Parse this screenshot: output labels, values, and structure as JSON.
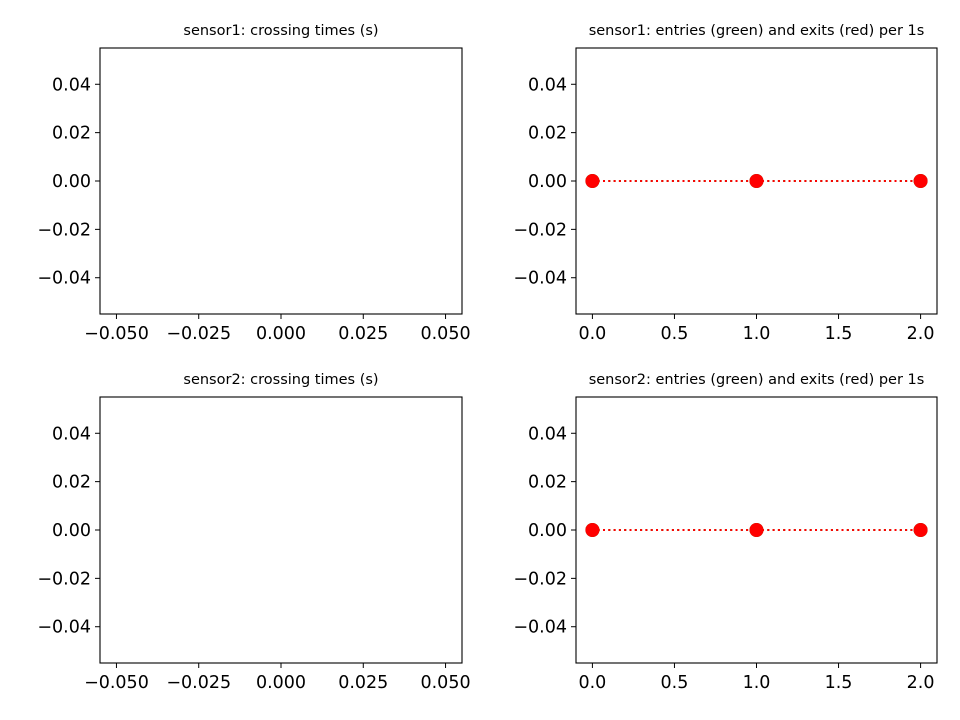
{
  "chart_data": [
    {
      "type": "scatter",
      "title": "sensor1: crossing times (s)",
      "x_ticks": [
        "−0.050",
        "−0.025",
        "0.000",
        "0.025",
        "0.050"
      ],
      "y_ticks": [
        "0.04",
        "0.02",
        "0.00",
        "−0.02",
        "−0.04"
      ],
      "xlim": [
        -0.055,
        0.055
      ],
      "ylim": [
        -0.055,
        0.055
      ],
      "x_tick_values": [
        -0.05,
        -0.025,
        0,
        0.025,
        0.05
      ],
      "y_tick_values": [
        0.04,
        0.02,
        0,
        -0.02,
        -0.04
      ],
      "series": []
    },
    {
      "type": "line",
      "title": "sensor1: entries (green) and exits (red) per 1s",
      "x_ticks": [
        "0.0",
        "0.5",
        "1.0",
        "1.5",
        "2.0"
      ],
      "y_ticks": [
        "0.04",
        "0.02",
        "0.00",
        "−0.02",
        "−0.04"
      ],
      "xlim": [
        -0.1,
        2.1
      ],
      "ylim": [
        -0.055,
        0.055
      ],
      "x_tick_values": [
        0,
        0.5,
        1,
        1.5,
        2
      ],
      "y_tick_values": [
        0.04,
        0.02,
        0,
        -0.02,
        -0.04
      ],
      "series": [
        {
          "x": [
            0,
            1,
            2
          ],
          "y": [
            0,
            0,
            0
          ],
          "color": "#008000",
          "marker": "circle",
          "linestyle": "dotted"
        },
        {
          "x": [
            0,
            1,
            2
          ],
          "y": [
            0,
            0,
            0
          ],
          "color": "#ff0000",
          "marker": "circle",
          "linestyle": "dotted"
        }
      ]
    },
    {
      "type": "scatter",
      "title": "sensor2: crossing times (s)",
      "x_ticks": [
        "−0.050",
        "−0.025",
        "0.000",
        "0.025",
        "0.050"
      ],
      "y_ticks": [
        "0.04",
        "0.02",
        "0.00",
        "−0.02",
        "−0.04"
      ],
      "xlim": [
        -0.055,
        0.055
      ],
      "ylim": [
        -0.055,
        0.055
      ],
      "x_tick_values": [
        -0.05,
        -0.025,
        0,
        0.025,
        0.05
      ],
      "y_tick_values": [
        0.04,
        0.02,
        0,
        -0.02,
        -0.04
      ],
      "series": []
    },
    {
      "type": "line",
      "title": "sensor2: entries (green) and exits (red) per 1s",
      "x_ticks": [
        "0.0",
        "0.5",
        "1.0",
        "1.5",
        "2.0"
      ],
      "y_ticks": [
        "0.04",
        "0.02",
        "0.00",
        "−0.02",
        "−0.04"
      ],
      "xlim": [
        -0.1,
        2.1
      ],
      "ylim": [
        -0.055,
        0.055
      ],
      "x_tick_values": [
        0,
        0.5,
        1,
        1.5,
        2
      ],
      "y_tick_values": [
        0.04,
        0.02,
        0,
        -0.02,
        -0.04
      ],
      "series": [
        {
          "x": [
            0,
            1,
            2
          ],
          "y": [
            0,
            0,
            0
          ],
          "color": "#008000",
          "marker": "circle",
          "linestyle": "dotted"
        },
        {
          "x": [
            0,
            1,
            2
          ],
          "y": [
            0,
            0,
            0
          ],
          "color": "#ff0000",
          "marker": "circle",
          "linestyle": "dotted"
        }
      ]
    }
  ]
}
